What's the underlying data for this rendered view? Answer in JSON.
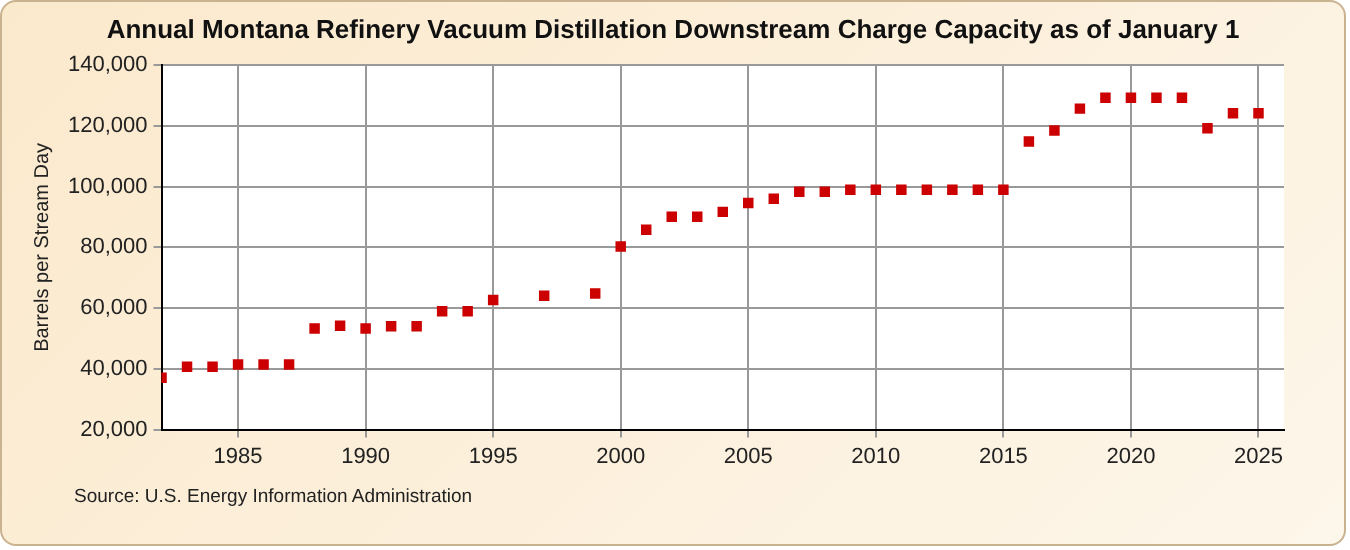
{
  "chart_data": {
    "type": "scatter",
    "title": "Annual Montana Refinery Vacuum Distillation Downstream Charge Capacity as of January 1",
    "ylabel": "Barrels per Stream Day",
    "x": [
      1982,
      1983,
      1984,
      1985,
      1986,
      1987,
      1988,
      1989,
      1990,
      1991,
      1992,
      1993,
      1994,
      1995,
      1997,
      1999,
      2000,
      2001,
      2002,
      2003,
      2004,
      2005,
      2006,
      2007,
      2008,
      2009,
      2010,
      2011,
      2012,
      2013,
      2014,
      2015,
      2016,
      2017,
      2018,
      2019,
      2020,
      2021,
      2022,
      2023,
      2024,
      2025
    ],
    "values": [
      37100,
      40700,
      40700,
      41400,
      41400,
      41400,
      53300,
      54200,
      53300,
      54000,
      54000,
      59000,
      59000,
      62700,
      64100,
      64800,
      80300,
      85800,
      90100,
      90100,
      91700,
      94600,
      96000,
      98300,
      98300,
      99000,
      99000,
      99000,
      99000,
      99000,
      99000,
      99000,
      114900,
      118500,
      125700,
      129300,
      129300,
      129300,
      129300,
      119200,
      124200,
      124200
    ],
    "color": "#cc0000",
    "marker": "square",
    "xlim": [
      1982,
      2026
    ],
    "xticks": [
      1985,
      1990,
      1995,
      2000,
      2005,
      2010,
      2015,
      2020,
      2025
    ],
    "ylim": [
      20000,
      140000
    ],
    "yticks": [
      {
        "value": 20000,
        "label": "20,000"
      },
      {
        "value": 40000,
        "label": "40,000"
      },
      {
        "value": 60000,
        "label": "60,000"
      },
      {
        "value": 80000,
        "label": "80,000"
      },
      {
        "value": 100000,
        "label": "100,000"
      },
      {
        "value": 120000,
        "label": "120,000"
      },
      {
        "value": 140000,
        "label": "140,000"
      }
    ],
    "grid": true,
    "annotations": [
      "Source: U.S. Energy Information Administration"
    ]
  }
}
